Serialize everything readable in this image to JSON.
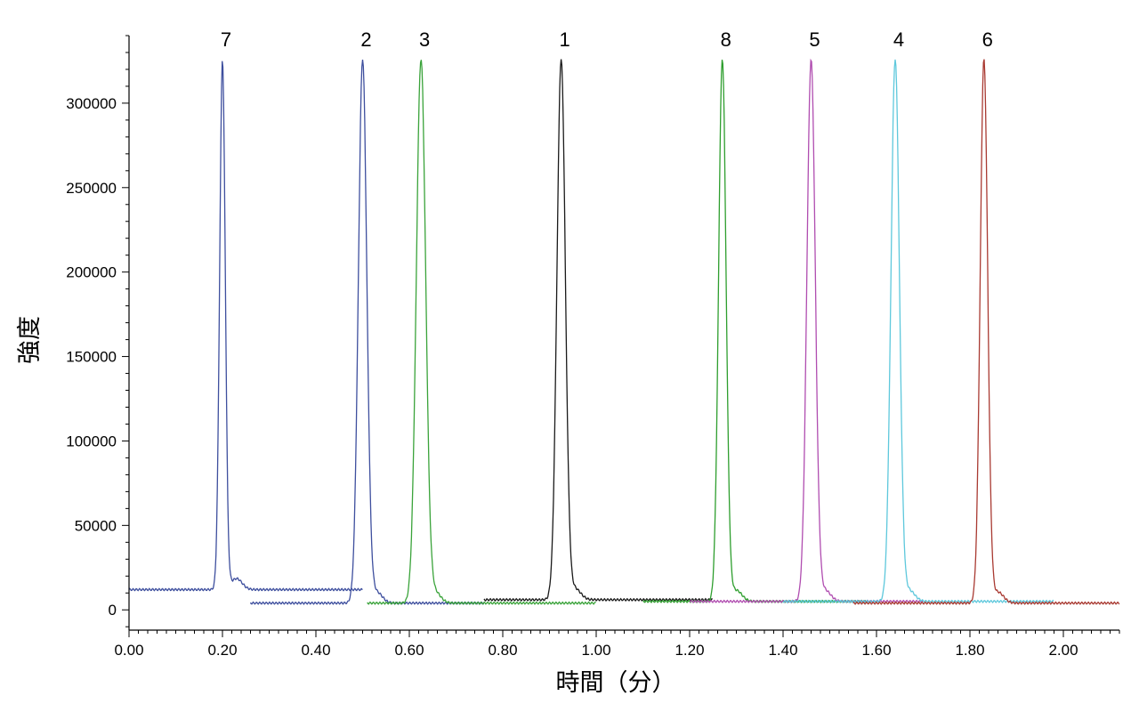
{
  "chart_data": {
    "type": "line",
    "xlabel": "時間（分）",
    "ylabel": "強度",
    "xlim": [
      0,
      2.12
    ],
    "ylim": [
      -12000,
      340000
    ],
    "x_ticks": [
      0,
      0.2,
      0.4,
      0.6,
      0.8,
      1.0,
      1.2,
      1.4,
      1.6,
      1.8,
      2.0
    ],
    "x_tick_labels": [
      "0.00",
      "0.20",
      "0.40",
      "0.60",
      "0.80",
      "1.00",
      "1.20",
      "1.40",
      "1.60",
      "1.80",
      "2.00"
    ],
    "y_ticks": [
      0,
      50000,
      100000,
      150000,
      200000,
      250000,
      300000
    ],
    "y_tick_labels": [
      "0",
      "50000",
      "100000",
      "150000",
      "200000",
      "250000",
      "300000"
    ],
    "grid": false,
    "series": [
      {
        "label": "7",
        "color": "#3e4f9e",
        "x_start": 0.0,
        "x_end": 0.5,
        "retention_time": 0.2,
        "apex": 326000,
        "baseline": 12000,
        "width": 0.006
      },
      {
        "label": "2",
        "color": "#3e4f9e",
        "x_start": 0.26,
        "x_end": 0.76,
        "retention_time": 0.5,
        "apex": 326000,
        "baseline": 4000,
        "width": 0.009
      },
      {
        "label": "3",
        "color": "#3aa33a",
        "x_start": 0.51,
        "x_end": 1.0,
        "retention_time": 0.625,
        "apex": 326000,
        "baseline": 4000,
        "width": 0.01
      },
      {
        "label": "1",
        "color": "#1a1a1a",
        "x_start": 0.76,
        "x_end": 1.25,
        "retention_time": 0.925,
        "apex": 326000,
        "baseline": 6000,
        "width": 0.009
      },
      {
        "label": "8",
        "color": "#2e9e2e",
        "x_start": 1.1,
        "x_end": 1.58,
        "retention_time": 1.27,
        "apex": 326000,
        "baseline": 5000,
        "width": 0.008
      },
      {
        "label": "5",
        "color": "#b04db0",
        "x_start": 1.2,
        "x_end": 1.7,
        "retention_time": 1.46,
        "apex": 326000,
        "baseline": 5000,
        "width": 0.009
      },
      {
        "label": "4",
        "color": "#5ec8dc",
        "x_start": 1.4,
        "x_end": 1.98,
        "retention_time": 1.64,
        "apex": 326000,
        "baseline": 5000,
        "width": 0.009
      },
      {
        "label": "6",
        "color": "#a93a32",
        "x_start": 1.55,
        "x_end": 2.12,
        "retention_time": 1.83,
        "apex": 326000,
        "baseline": 4000,
        "width": 0.008
      }
    ]
  }
}
